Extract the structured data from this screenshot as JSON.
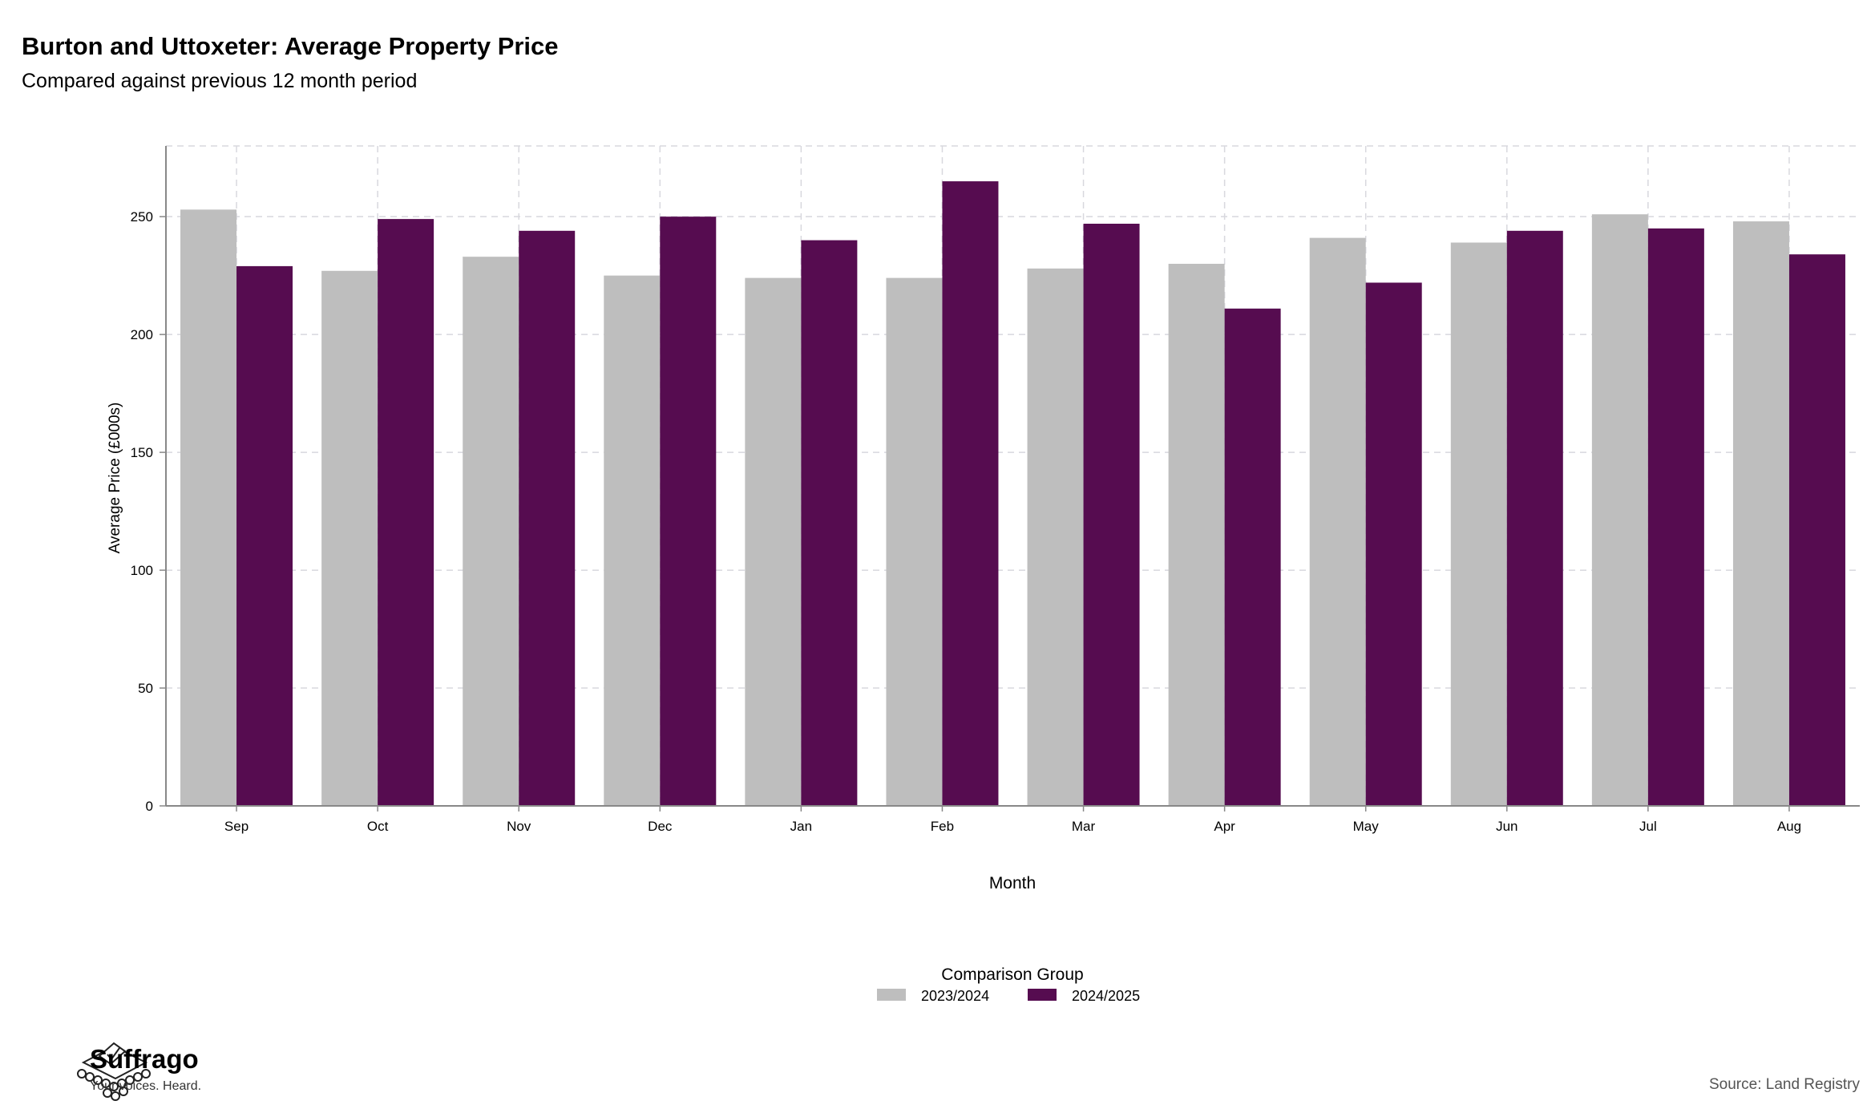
{
  "chart_data": {
    "type": "bar",
    "title": "Burton and Uttoxeter: Average Property Price",
    "subtitle": "Compared against previous 12 month period",
    "xlabel": "Month",
    "ylabel": "Average Price (£000s)",
    "ylim": [
      0,
      280
    ],
    "yticks": [
      0,
      50,
      100,
      150,
      200,
      250
    ],
    "grid": true,
    "legend_title": "Comparison Group",
    "legend_position": "bottom",
    "categories": [
      "Sep",
      "Oct",
      "Nov",
      "Dec",
      "Jan",
      "Feb",
      "Mar",
      "Apr",
      "May",
      "Jun",
      "Jul",
      "Aug"
    ],
    "series": [
      {
        "name": "2023/2024",
        "color": "#bebebe",
        "values": [
          253,
          227,
          233,
          225,
          224,
          224,
          228,
          230,
          241,
          239,
          251,
          248
        ]
      },
      {
        "name": "2024/2025",
        "color": "#560c50",
        "values": [
          229,
          249,
          244,
          250,
          240,
          265,
          247,
          211,
          222,
          244,
          245,
          234
        ]
      }
    ]
  },
  "branding": {
    "name": "Suffrago",
    "tagline": "Your voices. Heard."
  },
  "source": "Source: Land Registry"
}
